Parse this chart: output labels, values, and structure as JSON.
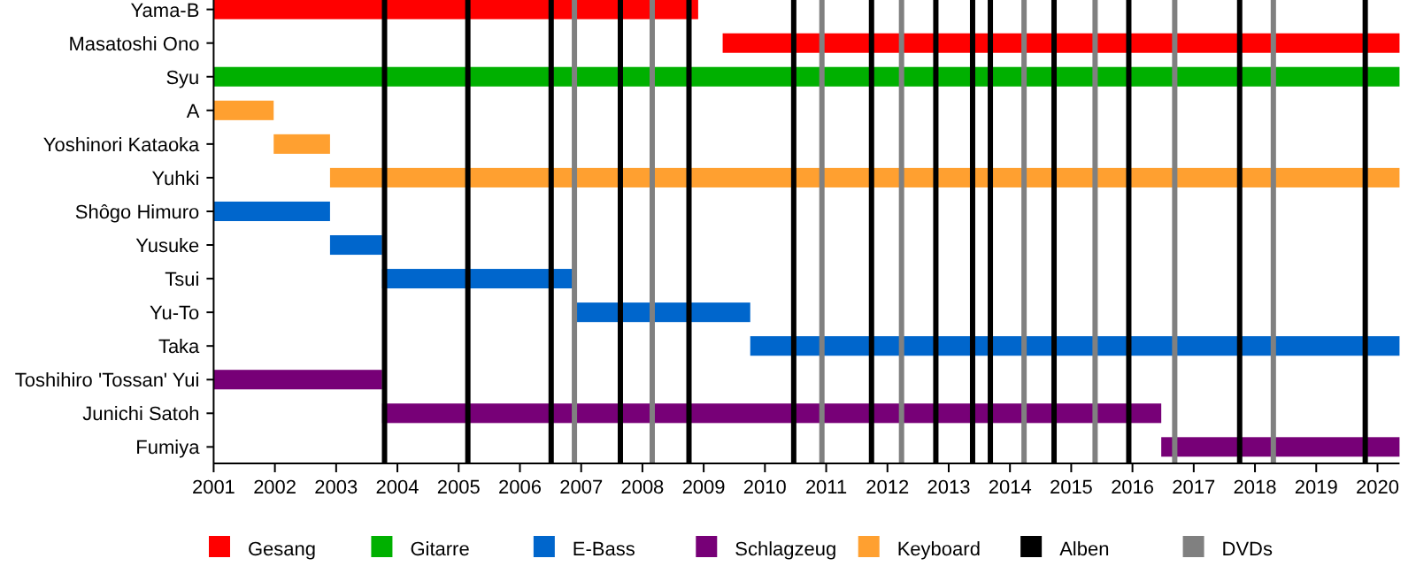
{
  "chart_data": {
    "type": "bar",
    "orientation": "horizontal",
    "legend": "bottom",
    "categories": [
      "Yama-B",
      "Masatoshi Ono",
      "Syu",
      "A",
      "Yoshinori Kataoka",
      "Yuhki",
      "Shôgo Himuro",
      "Yusuke",
      "Tsui",
      "Yu-To",
      "Taka",
      "Toshihiro 'Tossan' Yui",
      "Junichi Satoh",
      "Fumiya"
    ],
    "xlim": [
      2001,
      2020.36
    ],
    "xticks": [
      2001,
      2002,
      2003,
      2004,
      2005,
      2006,
      2007,
      2008,
      2009,
      2010,
      2011,
      2012,
      2013,
      2014,
      2015,
      2016,
      2017,
      2018,
      2019,
      2020
    ],
    "series": [
      {
        "name": "Gesang",
        "color": "#ff0000",
        "values": [
          7.91,
          11.05,
          null,
          null,
          null,
          null,
          null,
          null,
          null,
          null,
          null,
          null,
          null,
          null
        ],
        "base": [
          2001,
          2009.31,
          null,
          null,
          null,
          null,
          null,
          null,
          null,
          null,
          null,
          null,
          null,
          null
        ]
      },
      {
        "name": "Gitarre",
        "color": "#00b000",
        "values": [
          null,
          null,
          19.36,
          null,
          null,
          null,
          null,
          null,
          null,
          null,
          null,
          null,
          null,
          null
        ],
        "base": [
          null,
          null,
          2001,
          null,
          null,
          null,
          null,
          null,
          null,
          null,
          null,
          null,
          null,
          null
        ]
      },
      {
        "name": "E-Bass",
        "color": "#0066cc",
        "values": [
          null,
          null,
          null,
          null,
          null,
          null,
          1.9,
          0.85,
          3.15,
          2.86,
          10.6,
          null,
          null,
          null
        ],
        "base": [
          null,
          null,
          null,
          null,
          null,
          null,
          2001,
          2002.9,
          2003.75,
          2006.9,
          2009.76,
          null,
          null,
          null
        ]
      },
      {
        "name": "Schlagzeug",
        "color": "#770077",
        "values": [
          null,
          null,
          null,
          null,
          null,
          null,
          null,
          null,
          null,
          null,
          null,
          2.75,
          12.72,
          3.89
        ],
        "base": [
          null,
          null,
          null,
          null,
          null,
          null,
          null,
          null,
          null,
          null,
          null,
          2001,
          2003.75,
          2016.47
        ]
      },
      {
        "name": "Keyboard",
        "color": "#ffa030",
        "values": [
          null,
          null,
          null,
          0.98,
          0.92,
          17.46,
          null,
          null,
          null,
          null,
          null,
          null,
          null,
          null
        ],
        "base": [
          null,
          null,
          null,
          2001,
          2001.98,
          2002.9,
          null,
          null,
          null,
          null,
          null,
          null,
          null,
          null
        ]
      }
    ],
    "ref_lines": [
      {
        "axis": "x",
        "value": 2003.79,
        "label": "Alben",
        "color": "#000000"
      },
      {
        "axis": "x",
        "value": 2005.15,
        "color": "#000000"
      },
      {
        "axis": "x",
        "value": 2006.51,
        "color": "#000000"
      },
      {
        "axis": "x",
        "value": 2006.89,
        "label": "DVDs",
        "color": "#808080"
      },
      {
        "axis": "x",
        "value": 2007.64,
        "color": "#000000"
      },
      {
        "axis": "x",
        "value": 2008.16,
        "color": "#808080"
      },
      {
        "axis": "x",
        "value": 2008.76,
        "color": "#000000"
      },
      {
        "axis": "x",
        "value": 2010.47,
        "color": "#000000"
      },
      {
        "axis": "x",
        "value": 2010.93,
        "color": "#808080"
      },
      {
        "axis": "x",
        "value": 2011.74,
        "color": "#000000"
      },
      {
        "axis": "x",
        "value": 2012.23,
        "color": "#808080"
      },
      {
        "axis": "x",
        "value": 2012.79,
        "color": "#000000"
      },
      {
        "axis": "x",
        "value": 2013.39,
        "color": "#000000"
      },
      {
        "axis": "x",
        "value": 2013.68,
        "color": "#000000"
      },
      {
        "axis": "x",
        "value": 2014.23,
        "color": "#808080"
      },
      {
        "axis": "x",
        "value": 2014.72,
        "color": "#000000"
      },
      {
        "axis": "x",
        "value": 2015.39,
        "color": "#808080"
      },
      {
        "axis": "x",
        "value": 2015.94,
        "color": "#000000"
      },
      {
        "axis": "x",
        "value": 2016.69,
        "color": "#808080"
      },
      {
        "axis": "x",
        "value": 2017.75,
        "color": "#000000"
      },
      {
        "axis": "x",
        "value": 2018.3,
        "color": "#808080"
      },
      {
        "axis": "x",
        "value": 2019.8,
        "color": "#000000"
      }
    ]
  }
}
